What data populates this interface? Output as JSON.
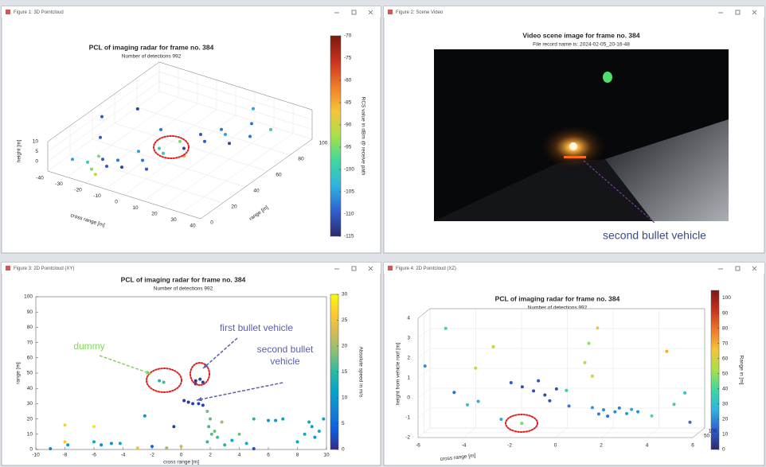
{
  "windows": [
    {
      "title": "Figure 1: 3D Pointcloud"
    },
    {
      "title": "Figure 2: Scene Video"
    },
    {
      "title": "Figure 3: 2D Pointcloud (XY)"
    },
    {
      "title": "Figure 4: 2D Pointcloud (XZ)"
    }
  ],
  "chart_data": [
    {
      "type": "scatter3d",
      "title": "PCL of imaging radar for frame no. 384",
      "subtitle": "Number of detections 992",
      "xlabel": "cross range [m]",
      "ylabel": "range [m]",
      "zlabel": "height [m]",
      "xlim": [
        -40,
        40
      ],
      "xticks": [
        -40,
        -30,
        -20,
        -10,
        0,
        10,
        20,
        30,
        40
      ],
      "ylim": [
        0,
        100
      ],
      "yticks": [
        0,
        20,
        40,
        60,
        80,
        100
      ],
      "zlim": [
        -5,
        10
      ],
      "zticks": [
        0,
        5,
        10
      ],
      "clabel": "RCS value in dBm @ receive path",
      "clim": [
        -115,
        -70
      ],
      "cticks": [
        -115,
        -110,
        -105,
        -100,
        -95,
        -90,
        -85,
        -80,
        -75,
        -70
      ],
      "colormap": [
        "#2b2a6b",
        "#2f5fd0",
        "#2fb3e0",
        "#3fd7a0",
        "#a8e04a",
        "#f5c53a",
        "#f07a2a",
        "#c8321c",
        "#7a1a10"
      ],
      "points": {
        "x": [
          -30,
          -25,
          -20,
          -15,
          -10,
          -5,
          0,
          5,
          10,
          -20,
          -15,
          -10,
          -5,
          0,
          5,
          10,
          15,
          20,
          -35,
          -28,
          15,
          25,
          30,
          -25,
          -18,
          0,
          -10,
          20,
          8,
          -30
        ],
        "y": [
          5,
          10,
          15,
          20,
          30,
          40,
          50,
          60,
          70,
          5,
          10,
          15,
          25,
          35,
          45,
          55,
          65,
          80,
          40,
          60,
          90,
          70,
          80,
          20,
          5,
          20,
          50,
          60,
          40,
          30
        ],
        "z": [
          2,
          0,
          1,
          0,
          2,
          1,
          2,
          3,
          3,
          0,
          1,
          0,
          1,
          2,
          2,
          3,
          4,
          5,
          8,
          6,
          7,
          4,
          5,
          -1,
          -2,
          0,
          5,
          3,
          1,
          3
        ],
        "c": [
          -105,
          -100,
          -110,
          -108,
          -105,
          -100,
          -95,
          -110,
          -108,
          -95,
          -110,
          -112,
          -108,
          -100,
          -112,
          -110,
          -105,
          -108,
          -110,
          -112,
          -105,
          -108,
          -100,
          -95,
          -90,
          -110,
          -108,
          -112,
          -85,
          -110
        ]
      }
    },
    {
      "type": "image",
      "title": "Video scene image for frame no. 384",
      "subtitle": "File record name is: 2024-02-05_20-16-48",
      "annotation": "second bullet vehicle",
      "annotation_color": "#3b4a8a"
    },
    {
      "type": "scatter",
      "title": "PCL of imaging radar for frame no. 384",
      "subtitle": "Number of detections 992",
      "xlabel": "cross range [m]",
      "ylabel": "range [m]",
      "xlim": [
        -10,
        10
      ],
      "xticks": [
        -10,
        -8,
        -6,
        -4,
        -2,
        0,
        2,
        4,
        6,
        8,
        10
      ],
      "ylim": [
        0,
        100
      ],
      "yticks": [
        0,
        10,
        20,
        30,
        40,
        50,
        60,
        70,
        80,
        90,
        100
      ],
      "clabel": "Absolute speed in m/s",
      "clim": [
        0,
        30
      ],
      "cticks": [
        0,
        5,
        10,
        15,
        20,
        25,
        30
      ],
      "colormap": [
        "#352a87",
        "#0f5cdd",
        "#1481d6",
        "#06a4ca",
        "#2eb7a4",
        "#87bf77",
        "#d1bb59",
        "#fec832",
        "#f9fb0e"
      ],
      "points": {
        "x": [
          -8,
          -8,
          -7.8,
          -6,
          -6,
          -5.5,
          -4.8,
          -4.2,
          -3,
          -2.5,
          -2,
          -1.5,
          -1.2,
          -1,
          -0.5,
          0,
          0.2,
          0.5,
          0.8,
          1,
          1.3,
          1,
          1.5,
          1.2,
          1.5,
          1.8,
          2,
          1.9,
          2.1,
          1.8,
          2.3,
          2.5,
          2.8,
          3,
          3.5,
          4,
          4.5,
          5,
          6,
          6.5,
          7,
          8,
          8.5,
          9,
          9.5,
          9.8,
          9.2,
          8.8,
          -9,
          5
        ],
        "y": [
          16,
          5,
          3,
          15,
          5,
          3,
          4,
          4,
          1,
          22,
          2,
          45,
          44,
          1,
          15,
          2,
          32,
          31,
          30,
          45,
          46,
          43,
          44,
          30,
          29,
          25,
          20,
          15,
          10,
          5,
          12,
          8,
          18,
          3,
          6,
          10,
          4,
          20,
          19,
          19,
          20,
          5,
          10,
          15,
          12,
          20,
          8,
          18,
          0.5,
          0.5
        ],
        "c": [
          27,
          26,
          10,
          28,
          12,
          8,
          9,
          12,
          25,
          10,
          5,
          14,
          16,
          20,
          2,
          22,
          1,
          1,
          2,
          1,
          2,
          1,
          1,
          2,
          2,
          18,
          17,
          16,
          17,
          15,
          18,
          16,
          20,
          14,
          12,
          18,
          13,
          14,
          10,
          10,
          11,
          11,
          12,
          11,
          12,
          11,
          10,
          12,
          8,
          3
        ]
      },
      "annotations": [
        {
          "lines": [
            "dummy"
          ],
          "color": "#7ed957"
        },
        {
          "lines": [
            "first bullet vehicle"
          ],
          "color": "#5b5fae"
        },
        {
          "lines": [
            "second bullet",
            "vehicle"
          ],
          "color": "#5b5fae"
        }
      ]
    },
    {
      "type": "scatter3d",
      "title": "PCL of imaging radar for frame no. 384",
      "subtitle": "Number of detections 992",
      "xlabel": "cross range [m]",
      "zlabel": "height from vehicle roof [m]",
      "xlim": [
        -6,
        6
      ],
      "xticks": [
        -6,
        -4,
        -2,
        0,
        2,
        4,
        6
      ],
      "ylim": [
        0,
        100
      ],
      "yticks": [
        50,
        100
      ],
      "zlim": [
        -2,
        4
      ],
      "zticks": [
        -2,
        -1,
        0,
        1,
        2,
        3,
        4
      ],
      "clabel": "Range in [m]",
      "clim": [
        0,
        105
      ],
      "cticks": [
        0,
        10,
        20,
        30,
        40,
        50,
        60,
        70,
        80,
        90,
        100
      ],
      "colormap": [
        "#2b2a6b",
        "#2f5fd0",
        "#2fb3e0",
        "#3fd7a0",
        "#a8e04a",
        "#f5c53a",
        "#f07a2a",
        "#c8321c",
        "#7a1a10"
      ],
      "points": {
        "x": [
          -5.8,
          -5,
          -4.5,
          -4,
          -3.8,
          -3,
          -2.5,
          -2,
          -1.7,
          -1.5,
          -1,
          -0.8,
          -0.5,
          -0.3,
          0,
          0.3,
          0.5,
          1,
          1.2,
          1.3,
          1.5,
          1.5,
          1.8,
          2,
          2.2,
          2.5,
          2.7,
          3,
          3.2,
          3.5,
          4,
          4.5,
          5,
          5.5,
          5.8,
          -3.5
        ],
        "y": [
          20,
          40,
          15,
          30,
          60,
          55,
          25,
          12,
          45,
          10,
          9,
          11,
          8,
          10,
          9,
          35,
          18,
          55,
          50,
          60,
          65,
          22,
          18,
          20,
          16,
          20,
          18,
          22,
          24,
          20,
          40,
          70,
          35,
          30,
          15,
          25
        ],
        "z": [
          1.5,
          3.3,
          0.2,
          -0.5,
          1.2,
          2.3,
          -1.2,
          0.7,
          -1.5,
          0.5,
          0.3,
          0.8,
          0.1,
          -0.2,
          0.4,
          0.2,
          -0.5,
          1.5,
          2.5,
          0.8,
          3.2,
          -0.6,
          -0.9,
          -0.7,
          -1,
          -0.8,
          -0.6,
          -0.9,
          -0.7,
          -0.8,
          -1.1,
          2,
          -0.5,
          0.1,
          -1.3,
          -0.3
        ],
        "c": [
          20,
          40,
          15,
          30,
          60,
          55,
          25,
          12,
          45,
          10,
          9,
          11,
          8,
          10,
          9,
          35,
          18,
          55,
          50,
          60,
          65,
          22,
          18,
          20,
          16,
          20,
          18,
          22,
          24,
          20,
          40,
          70,
          35,
          30,
          15,
          25
        ]
      }
    }
  ]
}
